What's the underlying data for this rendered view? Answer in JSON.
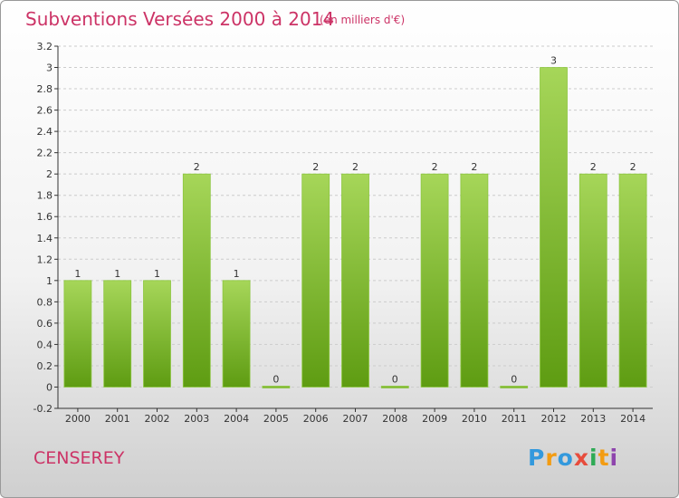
{
  "header": {
    "title": "Subventions Versées 2000 à 2014",
    "subtitle": "(en milliers d'€)"
  },
  "footer": {
    "commune": "CENSEREY",
    "logo_text": "Proxiti"
  },
  "colors": {
    "title": "#cc3366",
    "bar_light": "#a6d659",
    "bar_dark": "#5e9c12",
    "grid": "#cccccc"
  },
  "chart_data": {
    "type": "bar",
    "categories": [
      "2000",
      "2001",
      "2002",
      "2003",
      "2004",
      "2005",
      "2006",
      "2007",
      "2008",
      "2009",
      "2010",
      "2011",
      "2012",
      "2013",
      "2014"
    ],
    "values": [
      1,
      1,
      1,
      2,
      1,
      0,
      2,
      2,
      0,
      2,
      2,
      0,
      3,
      2,
      2
    ],
    "data_labels": [
      "1",
      "1",
      "1",
      "2",
      "1",
      "0",
      "2",
      "2",
      "0",
      "2",
      "2",
      "0",
      "3",
      "2",
      "2"
    ],
    "y_ticks": [
      "-0.2",
      "0",
      "0.2",
      "0.4",
      "0.6",
      "0.8",
      "1",
      "1.2",
      "1.4",
      "1.6",
      "1.8",
      "2",
      "2.2",
      "2.4",
      "2.6",
      "2.8",
      "3",
      "3.2"
    ],
    "ylim": [
      -0.2,
      3.2
    ],
    "grid": "horizontal dashed",
    "legend": "none"
  }
}
